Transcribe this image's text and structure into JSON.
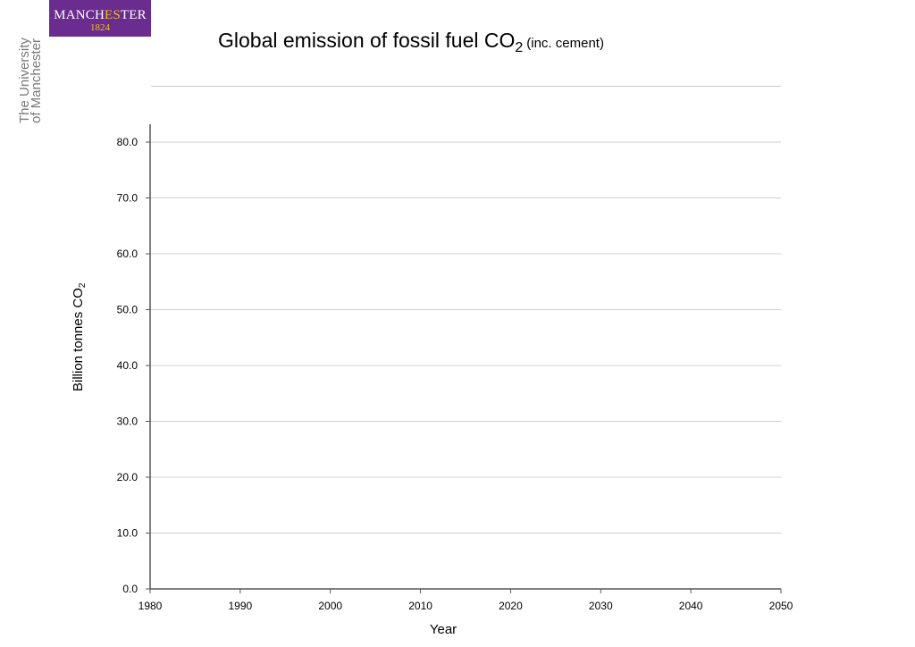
{
  "branding": {
    "logo_word_a": "MANCH",
    "logo_word_b": "ES",
    "logo_word_c": "TER",
    "logo_year": "1824",
    "logo_color": "#6a2c8e",
    "logo_accent": "#f0c419",
    "university_line1": "The University",
    "university_line2": "of Manchester"
  },
  "chart_data": {
    "type": "line",
    "title": "Global emission of fossil fuel CO",
    "title_subscript": "2",
    "title_note": "(inc. cement)",
    "xlabel": "Year",
    "ylabel": "Billion tonnes CO",
    "ylabel_subscript": "2",
    "xlim": [
      1980,
      2050
    ],
    "ylim": [
      0,
      80
    ],
    "x_ticks": [
      "1980",
      "1990",
      "2000",
      "2010",
      "2020",
      "2030",
      "2040",
      "2050"
    ],
    "y_ticks": [
      "0.0",
      "10.0",
      "20.0",
      "30.0",
      "40.0",
      "50.0",
      "60.0",
      "70.0",
      "80.0"
    ],
    "grid": "horizontal",
    "series": []
  }
}
